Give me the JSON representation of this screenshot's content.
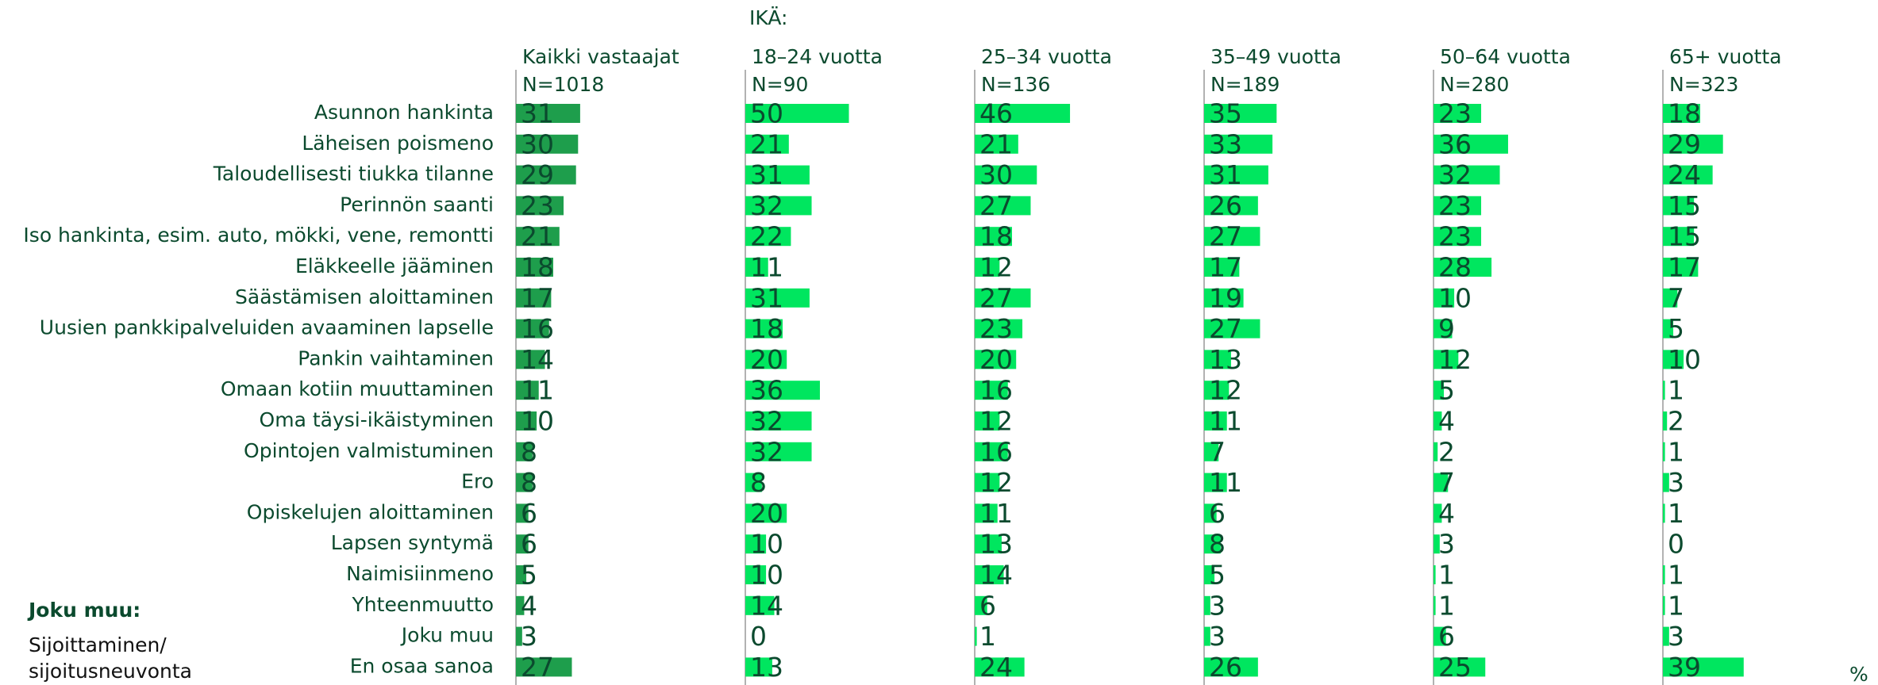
{
  "chart_data": {
    "type": "bar",
    "group_label": "IKÄ:",
    "unit": "%",
    "annotations": [
      "Joku muu:",
      "Sijoittaminen/",
      "sijoitusneuvonta"
    ],
    "categories": [
      "Asunnon hankinta",
      "Läheisen poismeno",
      "Taloudellisesti tiukka tilanne",
      "Perinnön saanti",
      "Iso hankinta, esim. auto, mökki, vene, remontti",
      "Eläkkeelle jääminen",
      "Säästämisen aloittaminen",
      "Uusien pankkipalveluiden avaaminen lapselle",
      "Pankin vaihtaminen",
      "Omaan kotiin muuttaminen",
      "Oma täysi-ikäistyminen",
      "Opintojen valmistuminen",
      "Ero",
      "Opiskelujen aloittaminen",
      "Lapsen syntymä",
      "Naimisiinmeno",
      "Yhteenmuutto",
      "Joku muu",
      "En osaa sanoa"
    ],
    "series": [
      {
        "name": "Kaikki vastaajat",
        "subtitle": "N=1018",
        "color": "#1e9e4c",
        "values": [
          31,
          30,
          29,
          23,
          21,
          18,
          17,
          16,
          14,
          11,
          10,
          8,
          8,
          6,
          6,
          5,
          4,
          3,
          27
        ]
      },
      {
        "name": "18–24 vuotta",
        "subtitle": "N=90",
        "color": "#00e65f",
        "values": [
          50,
          21,
          31,
          32,
          22,
          11,
          31,
          18,
          20,
          36,
          32,
          32,
          8,
          20,
          10,
          10,
          14,
          0,
          13
        ]
      },
      {
        "name": "25–34 vuotta",
        "subtitle": "N=136",
        "color": "#00e65f",
        "values": [
          46,
          21,
          30,
          27,
          18,
          12,
          27,
          23,
          20,
          16,
          12,
          16,
          12,
          11,
          13,
          14,
          6,
          1,
          24
        ]
      },
      {
        "name": "35–49 vuotta",
        "subtitle": "N=189",
        "color": "#00e65f",
        "values": [
          35,
          33,
          31,
          26,
          27,
          17,
          19,
          27,
          13,
          12,
          11,
          7,
          11,
          6,
          8,
          5,
          3,
          3,
          26
        ]
      },
      {
        "name": "50–64 vuotta",
        "subtitle": "N=280",
        "color": "#00e65f",
        "values": [
          23,
          36,
          32,
          23,
          23,
          28,
          10,
          9,
          12,
          5,
          4,
          2,
          7,
          4,
          3,
          1,
          1,
          6,
          25
        ]
      },
      {
        "name": "65+ vuotta",
        "subtitle": "N=323",
        "color": "#00e65f",
        "values": [
          18,
          29,
          24,
          15,
          15,
          17,
          7,
          5,
          10,
          1,
          2,
          1,
          3,
          1,
          0,
          1,
          1,
          3,
          39
        ]
      }
    ]
  }
}
